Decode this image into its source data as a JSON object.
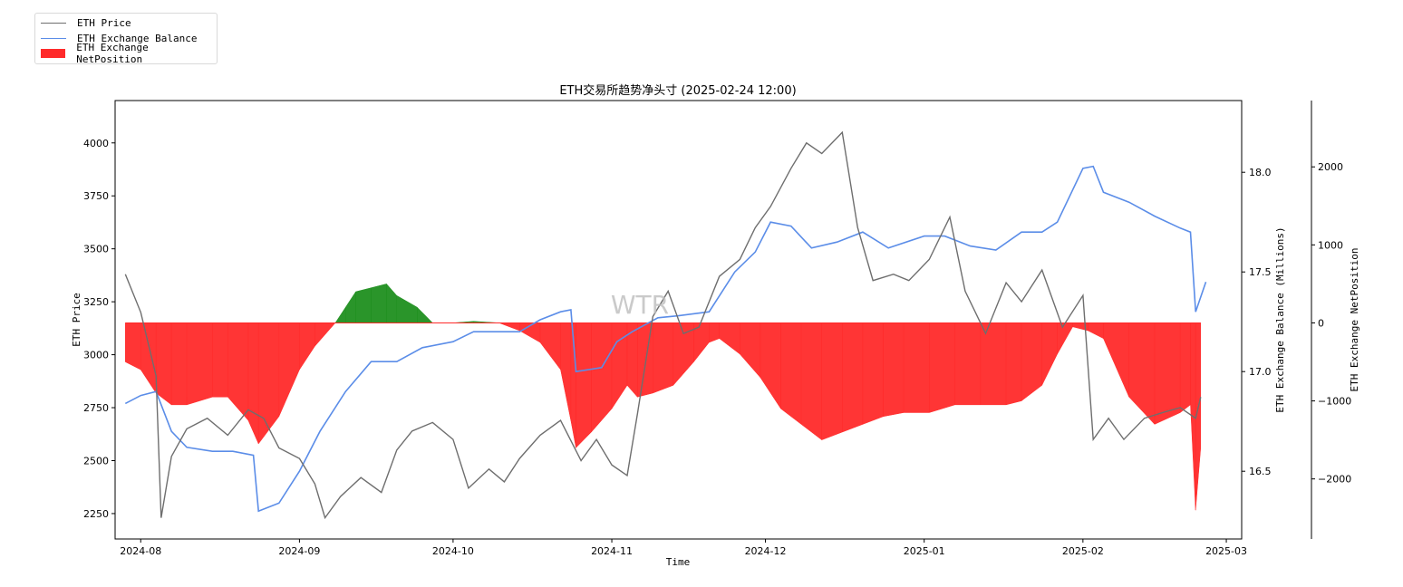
{
  "chart_data": {
    "type": "line",
    "title": "ETH交易所趋势净头寸 (2025-02-24 12:00)",
    "watermark": "WTR",
    "xlabel": "Time",
    "ylabel_left": "ETH Price",
    "ylabel_right": "ETH Exchange Balance (Millions)",
    "ylabel_right2": "ETH Exchange NetPosition",
    "x_range": [
      "2024-07-27",
      "2025-03-04"
    ],
    "x_ticks": [
      "2024-08",
      "2024-09",
      "2024-10",
      "2024-11",
      "2024-12",
      "2025-01",
      "2025-02",
      "2025-03"
    ],
    "x_tick_dates": [
      "2024-08-01",
      "2024-09-01",
      "2024-10-01",
      "2024-11-01",
      "2024-12-01",
      "2025-01-01",
      "2025-02-01",
      "2025-03-01"
    ],
    "ylim_left": [
      2130,
      4200
    ],
    "yticks_left": [
      2250,
      2500,
      2750,
      3000,
      3250,
      3500,
      3750,
      4000
    ],
    "ylim_right": [
      16.16,
      18.36
    ],
    "yticks_right": [
      16.5,
      17.0,
      17.5,
      18.0
    ],
    "ylim_right2": [
      -2770,
      2850
    ],
    "yticks_right2": [
      -2000,
      -1000,
      0,
      1000,
      2000
    ],
    "legend_placement": "top-left, outside plot",
    "grid": false,
    "series": [
      {
        "name": "ETH Price",
        "color": "#6e6e6e",
        "axis": "left",
        "x": [
          "2024-07-29",
          "2024-08-01",
          "2024-08-04",
          "2024-08-05",
          "2024-08-07",
          "2024-08-10",
          "2024-08-14",
          "2024-08-18",
          "2024-08-22",
          "2024-08-25",
          "2024-08-28",
          "2024-09-01",
          "2024-09-04",
          "2024-09-06",
          "2024-09-09",
          "2024-09-13",
          "2024-09-17",
          "2024-09-20",
          "2024-09-23",
          "2024-09-27",
          "2024-10-01",
          "2024-10-04",
          "2024-10-08",
          "2024-10-11",
          "2024-10-14",
          "2024-10-18",
          "2024-10-22",
          "2024-10-26",
          "2024-10-29",
          "2024-11-01",
          "2024-11-04",
          "2024-11-06",
          "2024-11-09",
          "2024-11-12",
          "2024-11-15",
          "2024-11-18",
          "2024-11-22",
          "2024-11-26",
          "2024-11-29",
          "2024-12-02",
          "2024-12-06",
          "2024-12-09",
          "2024-12-12",
          "2024-12-16",
          "2024-12-19",
          "2024-12-22",
          "2024-12-26",
          "2024-12-29",
          "2025-01-02",
          "2025-01-06",
          "2025-01-09",
          "2025-01-13",
          "2025-01-17",
          "2025-01-20",
          "2025-01-24",
          "2025-01-28",
          "2025-02-01",
          "2025-02-03",
          "2025-02-06",
          "2025-02-09",
          "2025-02-13",
          "2025-02-17",
          "2025-02-20",
          "2025-02-23",
          "2025-02-24"
        ],
        "values": [
          3380,
          3200,
          2900,
          2230,
          2520,
          2650,
          2700,
          2620,
          2740,
          2700,
          2560,
          2510,
          2390,
          2230,
          2330,
          2420,
          2350,
          2550,
          2640,
          2680,
          2600,
          2370,
          2460,
          2400,
          2510,
          2620,
          2690,
          2500,
          2600,
          2480,
          2430,
          2720,
          3180,
          3300,
          3100,
          3130,
          3370,
          3450,
          3600,
          3700,
          3880,
          4000,
          3950,
          4050,
          3600,
          3350,
          3380,
          3350,
          3450,
          3650,
          3300,
          3100,
          3340,
          3250,
          3400,
          3130,
          3280,
          2600,
          2700,
          2600,
          2700,
          2730,
          2750,
          2700,
          2800
        ]
      },
      {
        "name": "ETH Exchange Balance",
        "color": "#5b8de8",
        "axis": "right",
        "x": [
          "2024-07-29",
          "2024-08-01",
          "2024-08-04",
          "2024-08-07",
          "2024-08-10",
          "2024-08-15",
          "2024-08-19",
          "2024-08-23",
          "2024-08-24",
          "2024-08-28",
          "2024-09-01",
          "2024-09-05",
          "2024-09-10",
          "2024-09-15",
          "2024-09-20",
          "2024-09-25",
          "2024-10-01",
          "2024-10-05",
          "2024-10-10",
          "2024-10-14",
          "2024-10-18",
          "2024-10-22",
          "2024-10-24",
          "2024-10-25",
          "2024-10-30",
          "2024-11-02",
          "2024-11-05",
          "2024-11-10",
          "2024-11-14",
          "2024-11-20",
          "2024-11-25",
          "2024-11-29",
          "2024-12-02",
          "2024-12-06",
          "2024-12-10",
          "2024-12-15",
          "2024-12-20",
          "2024-12-25",
          "2025-01-01",
          "2025-01-05",
          "2025-01-10",
          "2025-01-15",
          "2025-01-20",
          "2025-01-24",
          "2025-01-27",
          "2025-02-01",
          "2025-02-03",
          "2025-02-05",
          "2025-02-10",
          "2025-02-15",
          "2025-02-20",
          "2025-02-22",
          "2025-02-23",
          "2025-02-25"
        ],
        "values": [
          16.84,
          16.88,
          16.9,
          16.7,
          16.62,
          16.6,
          16.6,
          16.58,
          16.3,
          16.34,
          16.5,
          16.7,
          16.9,
          17.05,
          17.05,
          17.12,
          17.15,
          17.2,
          17.2,
          17.2,
          17.26,
          17.3,
          17.31,
          17.0,
          17.02,
          17.15,
          17.2,
          17.27,
          17.28,
          17.3,
          17.5,
          17.6,
          17.75,
          17.73,
          17.62,
          17.65,
          17.7,
          17.62,
          17.68,
          17.68,
          17.63,
          17.61,
          17.7,
          17.7,
          17.75,
          18.02,
          18.03,
          17.9,
          17.85,
          17.78,
          17.72,
          17.7,
          17.3,
          17.45
        ]
      },
      {
        "name": "ETH Exchange NetPosition",
        "color": "#ff2a2a",
        "positive_color": "#1f8f1f",
        "axis": "right2",
        "type": "area",
        "x": [
          "2024-07-29",
          "2024-08-01",
          "2024-08-04",
          "2024-08-07",
          "2024-08-10",
          "2024-08-15",
          "2024-08-18",
          "2024-08-22",
          "2024-08-24",
          "2024-08-28",
          "2024-09-01",
          "2024-09-04",
          "2024-09-08",
          "2024-09-10",
          "2024-09-12",
          "2024-09-15",
          "2024-09-18",
          "2024-09-20",
          "2024-09-24",
          "2024-09-27",
          "2024-10-01",
          "2024-10-05",
          "2024-10-10",
          "2024-10-14",
          "2024-10-18",
          "2024-10-22",
          "2024-10-24",
          "2024-10-25",
          "2024-10-28",
          "2024-11-01",
          "2024-11-04",
          "2024-11-06",
          "2024-11-09",
          "2024-11-13",
          "2024-11-17",
          "2024-11-20",
          "2024-11-22",
          "2024-11-26",
          "2024-11-30",
          "2024-12-04",
          "2024-12-08",
          "2024-12-12",
          "2024-12-16",
          "2024-12-20",
          "2024-12-24",
          "2024-12-28",
          "2025-01-02",
          "2025-01-07",
          "2025-01-12",
          "2025-01-17",
          "2025-01-20",
          "2025-01-24",
          "2025-01-27",
          "2025-01-30",
          "2025-02-02",
          "2025-02-05",
          "2025-02-10",
          "2025-02-15",
          "2025-02-20",
          "2025-02-22",
          "2025-02-23",
          "2025-02-24"
        ],
        "values": [
          -500,
          -600,
          -900,
          -1050,
          -1050,
          -950,
          -950,
          -1250,
          -1550,
          -1200,
          -600,
          -300,
          0,
          200,
          400,
          450,
          500,
          350,
          200,
          0,
          0,
          20,
          0,
          -100,
          -250,
          -600,
          -1250,
          -1600,
          -1400,
          -1100,
          -800,
          -950,
          -900,
          -800,
          -500,
          -250,
          -200,
          -400,
          -700,
          -1100,
          -1300,
          -1500,
          -1400,
          -1300,
          -1200,
          -1150,
          -1150,
          -1050,
          -1050,
          -1050,
          -1000,
          -800,
          -400,
          -50,
          -100,
          -200,
          -950,
          -1300,
          -1150,
          -1050,
          -2400,
          -1600
        ]
      }
    ]
  }
}
